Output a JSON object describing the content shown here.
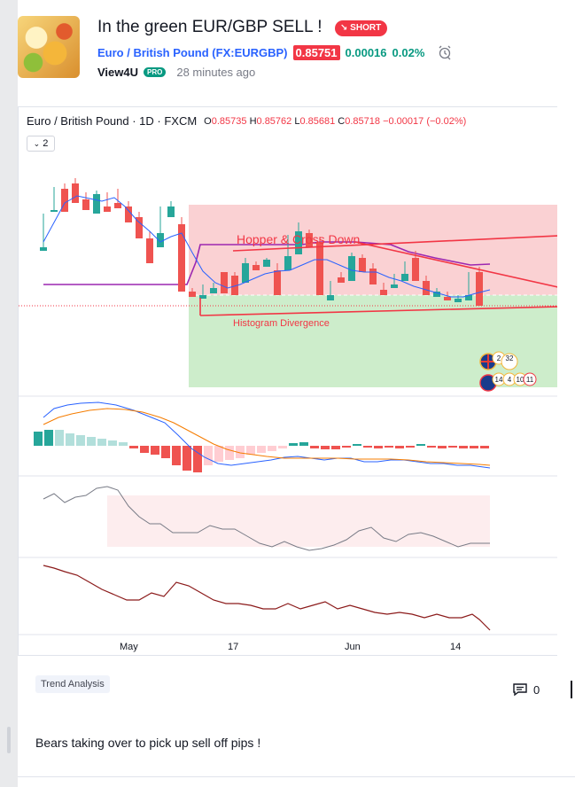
{
  "idea": {
    "title": "In the green EUR/GBP SELL !",
    "direction_label": "SHORT",
    "symbol_name": "Euro / British Pound",
    "symbol_ticker": "(FX:EURGBP)",
    "price": "0.85751",
    "change": "0.00016",
    "change_pct": "0.02%",
    "author": "View4U",
    "author_badge": "PRO",
    "posted": "28 minutes ago",
    "tag": "Trend Analysis",
    "comment_count": "0",
    "description": "Bears taking over to pick up sell off pips !"
  },
  "chart": {
    "legend_name": "Euro / British Pound · 1D · FXCM",
    "legend_o": "O",
    "legend_o_val": "0.85735",
    "legend_h": "H",
    "legend_h_val": "0.85762",
    "legend_l": "L",
    "legend_l_val": "0.85681",
    "legend_c": "C",
    "legend_c_val": "0.85718",
    "legend_chg": "−0.00017 (−0.02%)",
    "indicator_count": "2",
    "annotation_1": "Hopper & Cross Down",
    "annotation_2": "Histogram Divergence",
    "event_badges": [
      "2",
      "32",
      "14",
      "4",
      "10",
      "11"
    ],
    "x_ticks": [
      "May",
      "17",
      "Jun",
      "14"
    ]
  },
  "chart_data": {
    "type": "candlestick",
    "x_tick_labels": [
      "May",
      "17",
      "Jun",
      "14"
    ],
    "colors": {
      "up": "#26a69a",
      "down": "#ef5350",
      "ma": "#2962ff",
      "line_purple": "#9c27b0",
      "trend": "#f23645"
    }
  }
}
